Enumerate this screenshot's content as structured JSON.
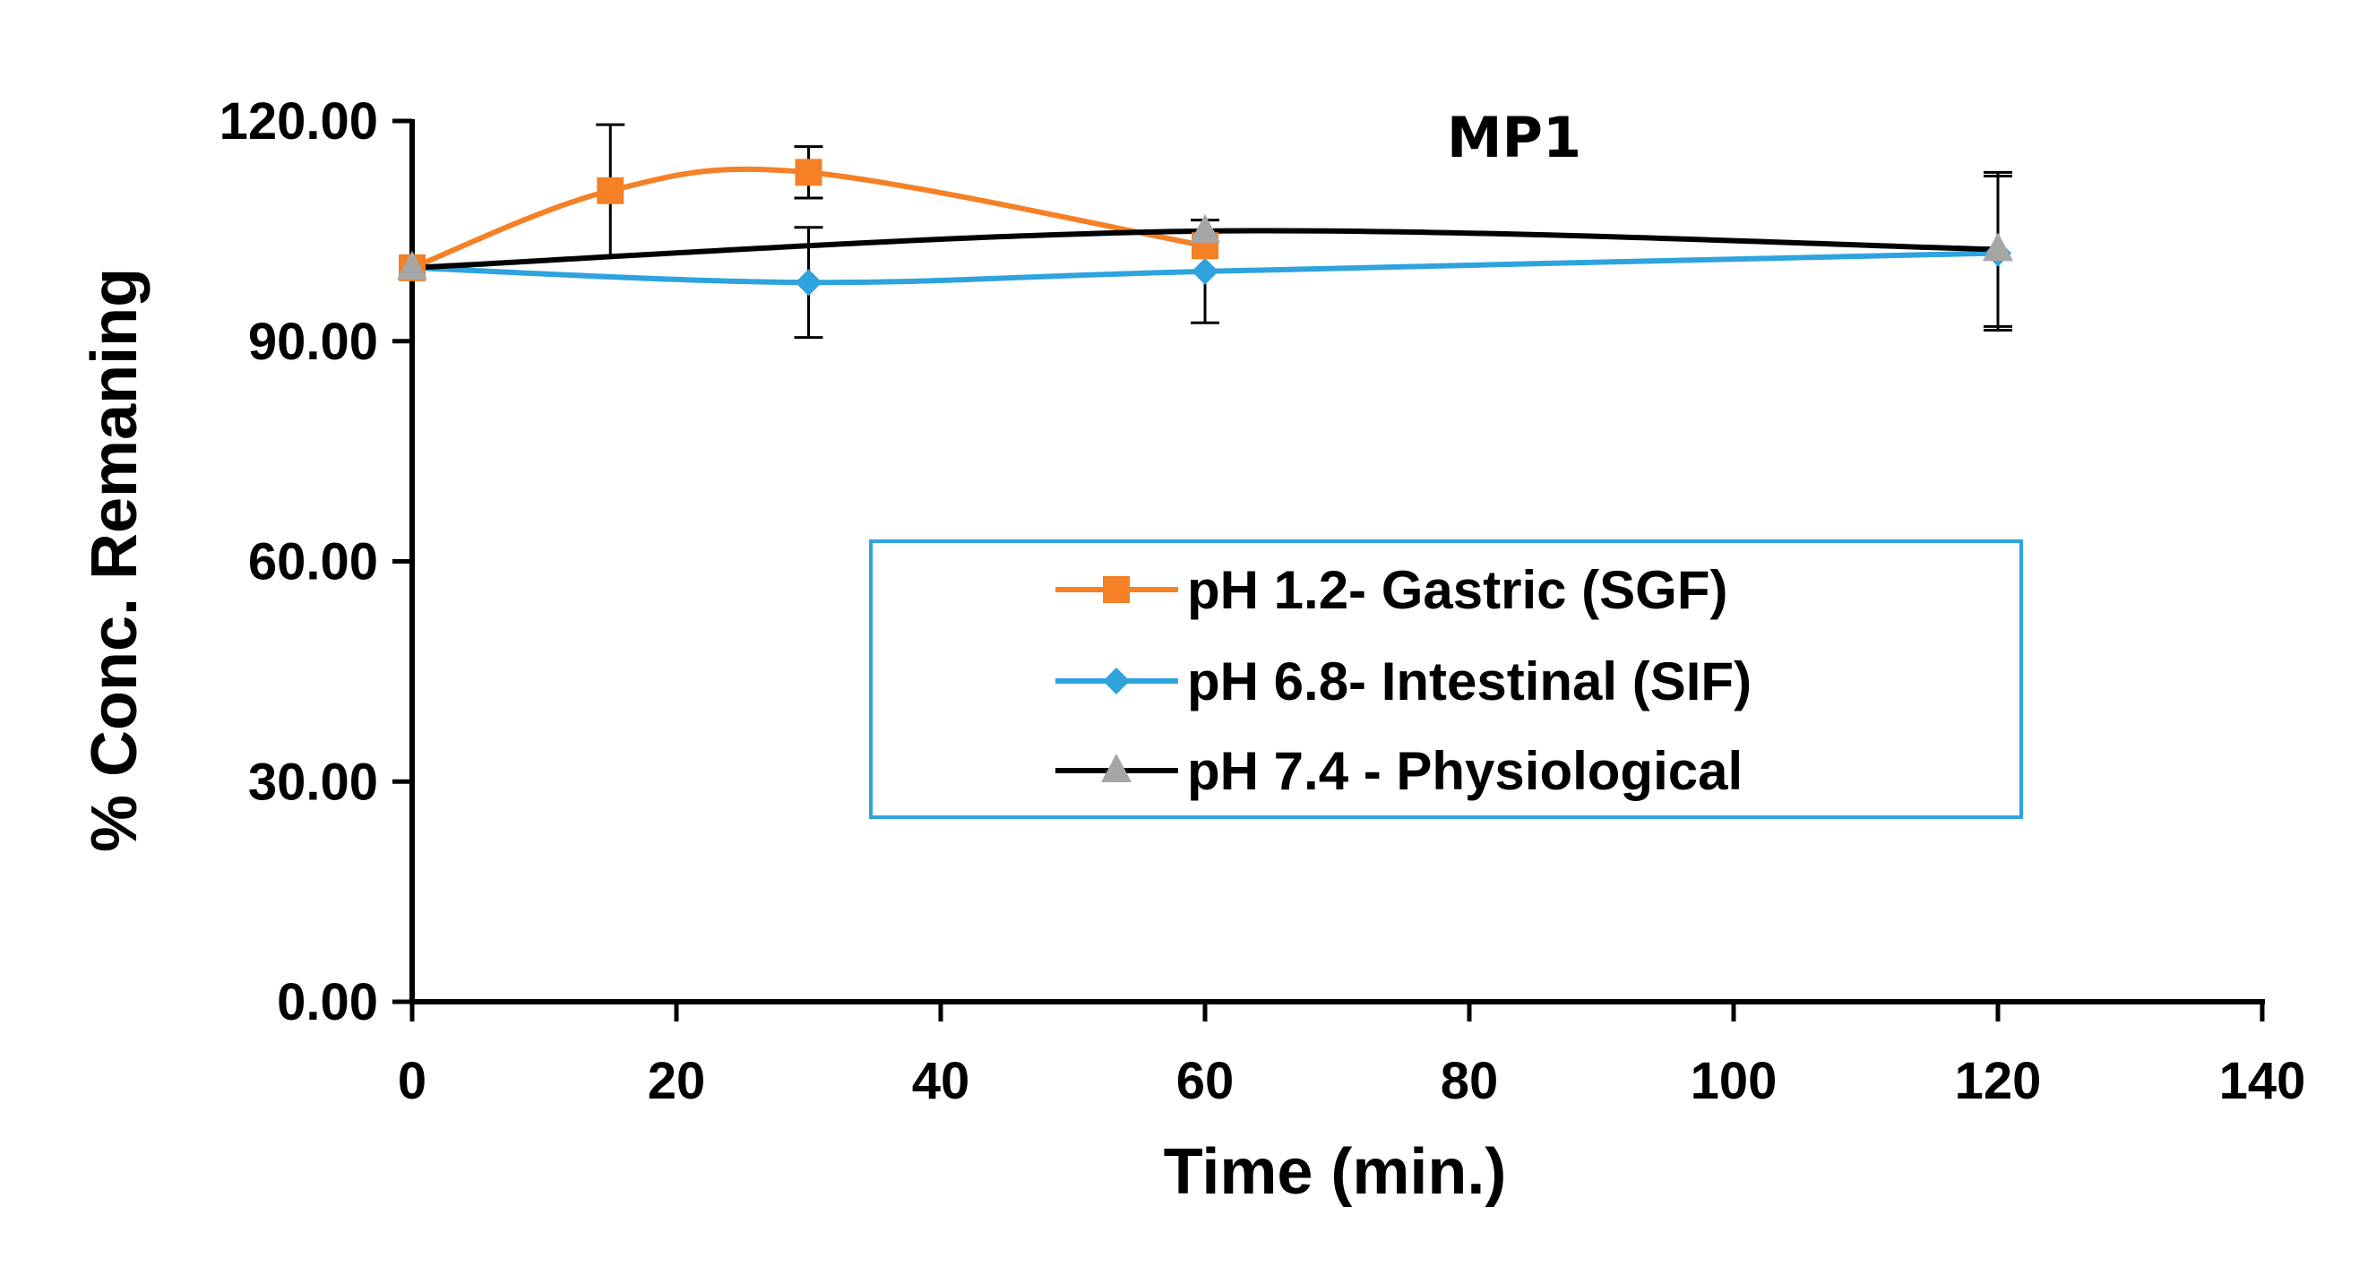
{
  "chart_data": {
    "type": "line",
    "title": "MP1",
    "xlabel": "Time (min.)",
    "ylabel": "% Conc. Remaning",
    "xlim": [
      0,
      140
    ],
    "ylim": [
      0,
      120
    ],
    "xticks": [
      "0",
      "20",
      "40",
      "60",
      "80",
      "100",
      "120",
      "140"
    ],
    "yticks": [
      "0.00",
      "30.00",
      "60.00",
      "90.00",
      "120.00"
    ],
    "xtick_values": [
      0,
      20,
      40,
      60,
      80,
      100,
      120,
      140
    ],
    "ytick_values": [
      0,
      30,
      60,
      90,
      120
    ],
    "grid": false,
    "legend_position": "center-right",
    "series": [
      {
        "name": "pH 1.2- Gastric (SGF)",
        "color": "#F58025",
        "marker": "square",
        "x": [
          0,
          15,
          30,
          60
        ],
        "y": [
          100.0,
          110.5,
          113.0,
          103.0
        ],
        "error": [
          0,
          9.0,
          3.5,
          0
        ]
      },
      {
        "name": "pH 6.8- Intestinal (SIF)",
        "color": "#2EA3DD",
        "marker": "diamond",
        "x": [
          0,
          30,
          60,
          120
        ],
        "y": [
          100.0,
          98.0,
          99.5,
          102.0
        ],
        "error": [
          0,
          7.5,
          7.0,
          10.5
        ]
      },
      {
        "name": "pH 7.4 - Physiological",
        "color": "#000000",
        "marker": "triangle",
        "x": [
          0,
          60,
          120
        ],
        "y": [
          100.0,
          105.0,
          102.5
        ],
        "error": [
          0,
          0,
          10.5
        ]
      }
    ]
  }
}
